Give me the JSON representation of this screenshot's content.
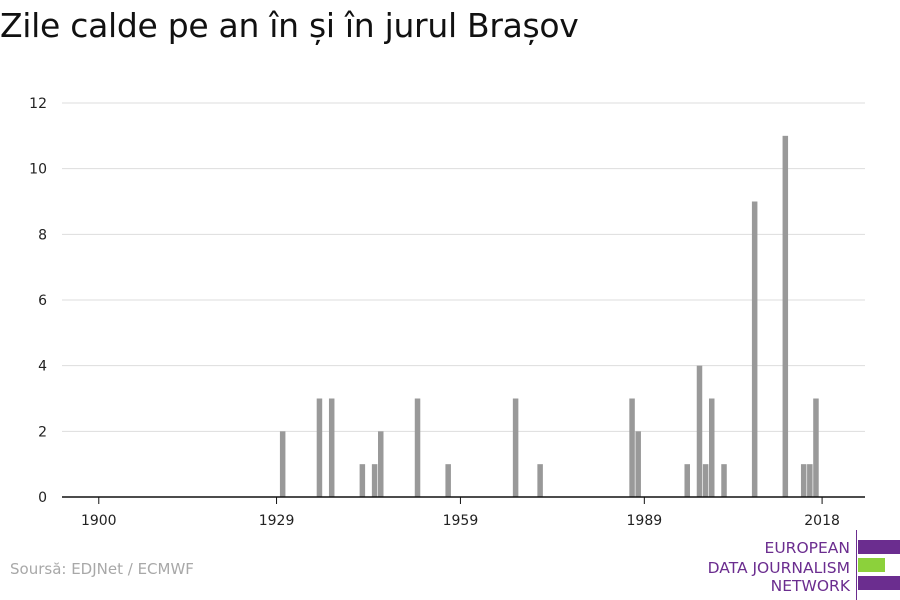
{
  "title": "Zile calde pe an în și în jurul Brașov",
  "source": "Soursă: EDJNet / ECMWF",
  "logo": {
    "lines": [
      "EUROPEAN",
      "DATA JOURNALISM",
      "NETWORK"
    ],
    "colors": {
      "purple": "#6b2d8f",
      "green": "#8cd13b"
    }
  },
  "chart_data": {
    "type": "bar",
    "x_ticks": [
      1900,
      1929,
      1959,
      1989,
      2018
    ],
    "y_ticks": [
      0,
      2,
      4,
      6,
      8,
      10,
      12
    ],
    "xlim": [
      1894,
      2025
    ],
    "ylim": [
      0,
      12
    ],
    "grid": true,
    "bar_color": "#999999",
    "data": [
      {
        "year": 1930,
        "value": 2
      },
      {
        "year": 1936,
        "value": 3
      },
      {
        "year": 1938,
        "value": 3
      },
      {
        "year": 1943,
        "value": 1
      },
      {
        "year": 1945,
        "value": 1
      },
      {
        "year": 1946,
        "value": 2
      },
      {
        "year": 1952,
        "value": 3
      },
      {
        "year": 1957,
        "value": 1
      },
      {
        "year": 1968,
        "value": 3
      },
      {
        "year": 1972,
        "value": 1
      },
      {
        "year": 1987,
        "value": 3
      },
      {
        "year": 1988,
        "value": 2
      },
      {
        "year": 1996,
        "value": 1
      },
      {
        "year": 1998,
        "value": 4
      },
      {
        "year": 1999,
        "value": 1
      },
      {
        "year": 2000,
        "value": 3
      },
      {
        "year": 2002,
        "value": 1
      },
      {
        "year": 2007,
        "value": 9
      },
      {
        "year": 2012,
        "value": 11
      },
      {
        "year": 2015,
        "value": 1
      },
      {
        "year": 2016,
        "value": 1
      },
      {
        "year": 2017,
        "value": 3
      }
    ]
  }
}
